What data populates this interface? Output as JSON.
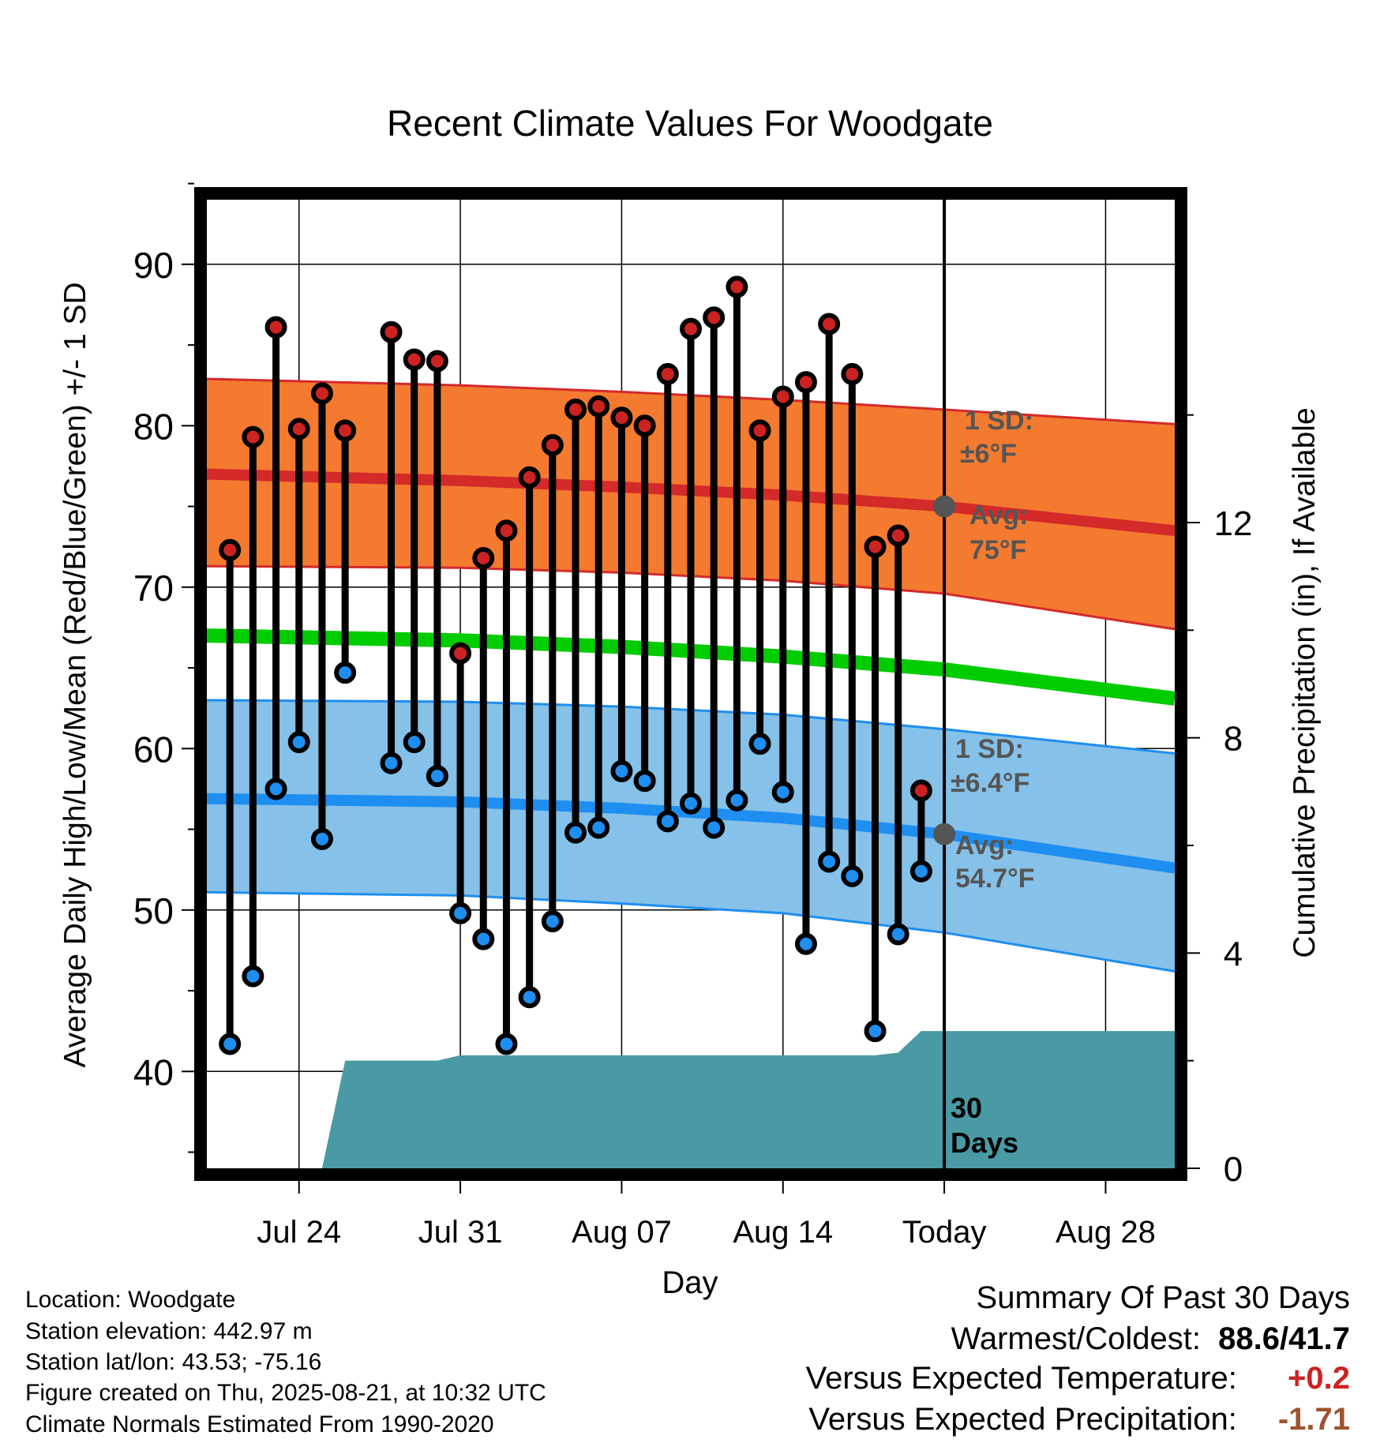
{
  "title": "Recent Climate Values For Woodgate",
  "chart_data": {
    "type": "line",
    "title": "Recent Climate Values For Woodgate",
    "xlabel": "Day",
    "ylabel": "Average Daily High/Low/Mean (Red/Blue/Green) +/- 1 SD",
    "y2label": "Cumulative Precipitation (in), If Available",
    "ylim": [
      34,
      94
    ],
    "y2lim": [
      0,
      18
    ],
    "xlim": [
      "2025-07-20",
      "2025-08-31"
    ],
    "x_ticks": [
      {
        "date": "2025-07-24",
        "label": "Jul 24"
      },
      {
        "date": "2025-07-31",
        "label": "Jul 31"
      },
      {
        "date": "2025-08-07",
        "label": "Aug 07"
      },
      {
        "date": "2025-08-14",
        "label": "Aug 14"
      },
      {
        "date": "2025-08-21",
        "label": "Today"
      },
      {
        "date": "2025-08-28",
        "label": "Aug 28"
      }
    ],
    "y_ticks": [
      40,
      50,
      60,
      70,
      80,
      90
    ],
    "y2_ticks": [
      0,
      4,
      8,
      12
    ],
    "grid": true,
    "colors": {
      "high_band": "#f47a30",
      "high_line": "#d42a2a",
      "high_edge": "#d42a2a",
      "low_band": "#85c1e8",
      "low_line": "#1e8ef0",
      "low_edge": "#1e8ef0",
      "mean_line": "#00cc00",
      "precip": "#4a9aa5",
      "high_marker": "#cc2222",
      "low_marker": "#1e8ef0",
      "avg_marker": "#555555"
    },
    "normals": {
      "dates": [
        "2025-07-20",
        "2025-07-31",
        "2025-08-07",
        "2025-08-14",
        "2025-08-21",
        "2025-08-31"
      ],
      "high_mean": [
        77.0,
        76.6,
        76.2,
        75.7,
        75.0,
        73.5
      ],
      "high_upper": [
        82.9,
        82.5,
        82.1,
        81.6,
        81.0,
        80.1
      ],
      "high_lower": [
        71.3,
        71.2,
        70.9,
        70.4,
        69.6,
        67.4
      ],
      "low_mean": [
        56.9,
        56.7,
        56.3,
        55.7,
        54.7,
        52.6
      ],
      "low_upper": [
        63.0,
        62.9,
        62.6,
        62.1,
        61.2,
        59.7
      ],
      "low_lower": [
        51.1,
        50.9,
        50.4,
        49.8,
        48.6,
        46.2
      ],
      "mean": [
        67.0,
        66.7,
        66.3,
        65.7,
        64.9,
        63.1
      ]
    },
    "series": [
      {
        "name": "High",
        "x": [
          "2025-07-21",
          "2025-07-22",
          "2025-07-23",
          "2025-07-24",
          "2025-07-25",
          "2025-07-26",
          "2025-07-27",
          "2025-07-28",
          "2025-07-29",
          "2025-07-30",
          "2025-07-31",
          "2025-08-01",
          "2025-08-02",
          "2025-08-03",
          "2025-08-04",
          "2025-08-05",
          "2025-08-06",
          "2025-08-07",
          "2025-08-08",
          "2025-08-09",
          "2025-08-10",
          "2025-08-11",
          "2025-08-12",
          "2025-08-13",
          "2025-08-14",
          "2025-08-15",
          "2025-08-16",
          "2025-08-17",
          "2025-08-18",
          "2025-08-19",
          "2025-08-20"
        ],
        "values": [
          72.3,
          79.3,
          86.1,
          79.8,
          82.0,
          79.7,
          null,
          85.8,
          84.1,
          84.0,
          65.9,
          71.8,
          73.5,
          76.8,
          78.8,
          81.0,
          81.2,
          80.5,
          80.0,
          83.2,
          86.0,
          86.7,
          88.6,
          79.7,
          81.8,
          82.7,
          86.3,
          83.2,
          72.5,
          73.2,
          57.4
        ]
      },
      {
        "name": "Low",
        "x": [
          "2025-07-21",
          "2025-07-22",
          "2025-07-23",
          "2025-07-24",
          "2025-07-25",
          "2025-07-26",
          "2025-07-27",
          "2025-07-28",
          "2025-07-29",
          "2025-07-30",
          "2025-07-31",
          "2025-08-01",
          "2025-08-02",
          "2025-08-03",
          "2025-08-04",
          "2025-08-05",
          "2025-08-06",
          "2025-08-07",
          "2025-08-08",
          "2025-08-09",
          "2025-08-10",
          "2025-08-11",
          "2025-08-12",
          "2025-08-13",
          "2025-08-14",
          "2025-08-15",
          "2025-08-16",
          "2025-08-17",
          "2025-08-18",
          "2025-08-19",
          "2025-08-20"
        ],
        "values": [
          41.7,
          45.9,
          57.5,
          60.4,
          54.4,
          64.7,
          null,
          59.1,
          60.4,
          58.3,
          49.8,
          48.2,
          41.7,
          44.6,
          49.3,
          54.8,
          55.1,
          58.6,
          58.0,
          55.5,
          56.6,
          55.1,
          56.8,
          60.3,
          57.3,
          47.9,
          53.0,
          52.1,
          42.5,
          48.5,
          52.4
        ]
      },
      {
        "name": "Cumulative Precipitation",
        "x": [
          "2025-07-25",
          "2025-07-26",
          "2025-07-30",
          "2025-07-31",
          "2025-08-18",
          "2025-08-19",
          "2025-08-20",
          "2025-08-31"
        ],
        "values": [
          0,
          2.0,
          2.0,
          2.1,
          2.1,
          2.15,
          2.55,
          2.55
        ]
      }
    ],
    "annotations": [
      {
        "label": "1 SD:",
        "value": "±6°F"
      },
      {
        "label": "Avg:",
        "value": "75°F"
      },
      {
        "label": "1 SD:",
        "value": "±6.4°F"
      },
      {
        "label": "Avg:",
        "value": "54.7°F"
      },
      {
        "label": "30",
        "value": "Days"
      }
    ]
  },
  "info": {
    "location": "Location: Woodgate",
    "elevation": "Station elevation: 442.97 m",
    "latlon": "Station lat/lon: 43.53; -75.16",
    "created": "Figure created on Thu, 2025-08-21, at 10:32 UTC",
    "normals": "Climate Normals Estimated From 1990-2020"
  },
  "summary": {
    "heading": "Summary Of Past 30 Days",
    "warm_cold_label": "Warmest/Coldest:",
    "warm_cold_value": "88.6/41.7",
    "temp_label": "Versus Expected Temperature:",
    "temp_value": "+0.2",
    "temp_color": "#cc2222",
    "precip_label": "Versus Expected Precipitation:",
    "precip_value": "-1.71",
    "precip_color": "#a0522d"
  }
}
